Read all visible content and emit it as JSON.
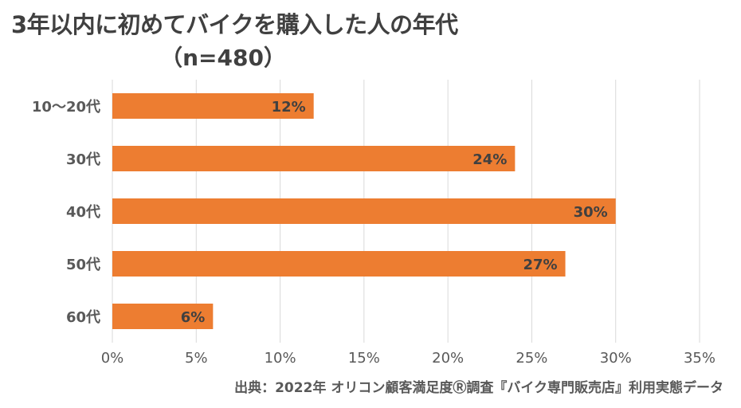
{
  "chart_data": {
    "type": "bar",
    "orientation": "horizontal",
    "title": "3年以内に初めてバイクを購入した人の年代",
    "subtitle": "（n=480）",
    "categories": [
      "10～20代",
      "30代",
      "40代",
      "50代",
      "60代"
    ],
    "values": [
      12,
      24,
      30,
      27,
      6
    ],
    "data_labels": [
      "12%",
      "24%",
      "30%",
      "27%",
      "6%"
    ],
    "xlim": [
      0,
      35
    ],
    "x_ticks": [
      "0%",
      "5%",
      "10%",
      "15%",
      "20%",
      "25%",
      "30%",
      "35%"
    ],
    "grid": true,
    "bar_color": "#ED7D31"
  },
  "source": "出典：2022年 オリコン顧客満足度Ⓡ調査『バイク専門販売店』利用実態データ"
}
